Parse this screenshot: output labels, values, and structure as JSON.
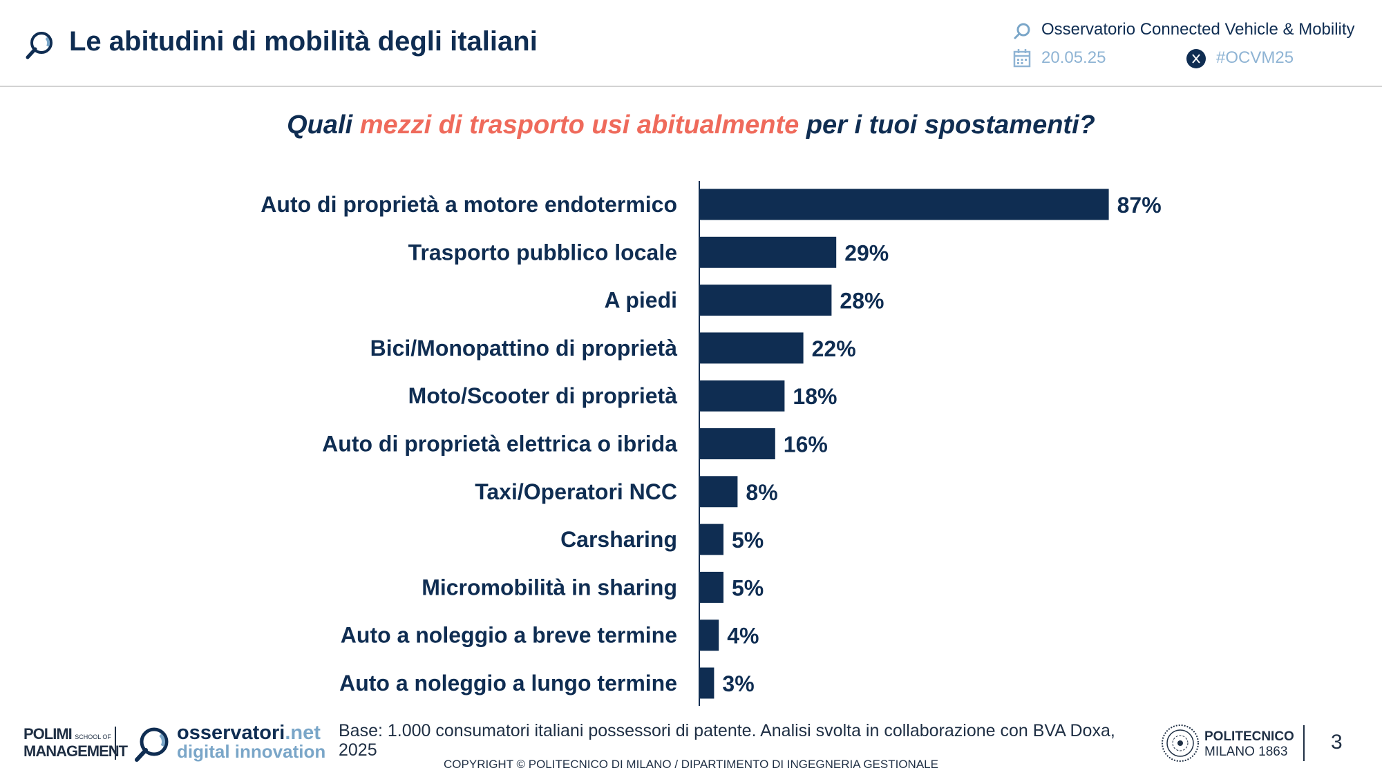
{
  "header": {
    "title": "Le abitudini di mobilità degli italiani",
    "observatory": "Osservatorio Connected  Vehicle & Mobility",
    "date": "20.05.25",
    "hashtag": "#OCVM25"
  },
  "question": {
    "part1": "Quali ",
    "highlight": "mezzi di trasporto usi abitualmente",
    "part2": " per i tuoi spostamenti?"
  },
  "chart_data": {
    "type": "bar",
    "orientation": "horizontal",
    "categories": [
      "Auto di proprietà a motore endotermico",
      "Trasporto pubblico locale",
      "A piedi",
      "Bici/Monopattino di proprietà",
      "Moto/Scooter di proprietà",
      "Auto di proprietà elettrica o ibrida",
      "Taxi/Operatori NCC",
      "Carsharing",
      "Micromobilità in sharing",
      "Auto a noleggio a breve termine",
      "Auto a noleggio a lungo termine"
    ],
    "values": [
      87,
      29,
      28,
      22,
      18,
      16,
      8,
      5,
      5,
      4,
      3
    ],
    "value_labels": [
      "87%",
      "29%",
      "28%",
      "22%",
      "18%",
      "16%",
      "8%",
      "5%",
      "5%",
      "4%",
      "3%"
    ],
    "xlim": [
      0,
      100
    ],
    "grid": false,
    "bar_color": "#0f2d52"
  },
  "footer": {
    "polimi_line1": "POLIMI",
    "polimi_school": "SCHOOL OF",
    "polimi_line2": "MANAGEMENT",
    "osservatori_brand": "osservatori",
    "osservatori_tld": ".net",
    "osservatori_sub": "digital innovation",
    "note": "Base: 1.000 consumatori italiani possessori di patente. Analisi svolta in collaborazione con BVA Doxa, 2025",
    "copyright": "COPYRIGHT © POLITECNICO DI MILANO / DIPARTIMENTO DI INGEGNERIA GESTIONALE",
    "politecnico_line1": "POLITECNICO",
    "politecnico_line2": "MILANO 1863",
    "page_number": "3"
  },
  "colors": {
    "navy": "#0f2d52",
    "accent": "#ef6a5b",
    "light_blue": "#7aa6c8",
    "muted": "#8fb4d4"
  },
  "icons": [
    "magnifier-logo-icon",
    "magnifier-small-icon",
    "calendar-icon",
    "x-logo-icon",
    "politecnico-seal-icon"
  ]
}
